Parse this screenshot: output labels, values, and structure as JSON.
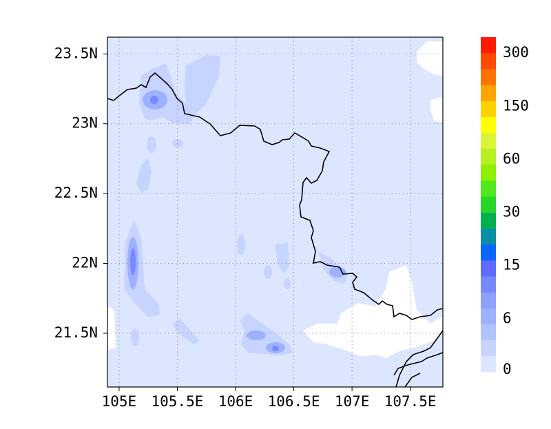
{
  "map": {
    "xlim": [
      104.9,
      107.78
    ],
    "ylim": [
      21.115,
      23.62
    ],
    "xticks": [
      {
        "value": 105,
        "label": "105E"
      },
      {
        "value": 105.5,
        "label": "105.5E"
      },
      {
        "value": 106,
        "label": "106E"
      },
      {
        "value": 106.5,
        "label": "106.5E"
      },
      {
        "value": 107,
        "label": "107E"
      },
      {
        "value": 107.5,
        "label": "107.5E"
      }
    ],
    "yticks": [
      {
        "value": 21.5,
        "label": "21.5N"
      },
      {
        "value": 22,
        "label": "22N"
      },
      {
        "value": 22.5,
        "label": "22.5N"
      },
      {
        "value": 23,
        "label": "23N"
      },
      {
        "value": 23.5,
        "label": "23.5N"
      }
    ],
    "grid": true
  },
  "colorbar": {
    "levels": [
      0,
      6,
      15,
      30,
      60,
      150,
      300
    ],
    "colors": [
      "#dde6ff",
      "#c6d4ff",
      "#b0c3ff",
      "#9db1ff",
      "#8ba0ff",
      "#7689ff",
      "#5f6cff",
      "#0a66ff",
      "#0a8fa8",
      "#00b050",
      "#26d628",
      "#4fe81c",
      "#8cf000",
      "#b4f022",
      "#d8f53a",
      "#ffff00",
      "#ffd000",
      "#ffa400",
      "#ff7400",
      "#ff4a00",
      "#ff1a00"
    ]
  }
}
